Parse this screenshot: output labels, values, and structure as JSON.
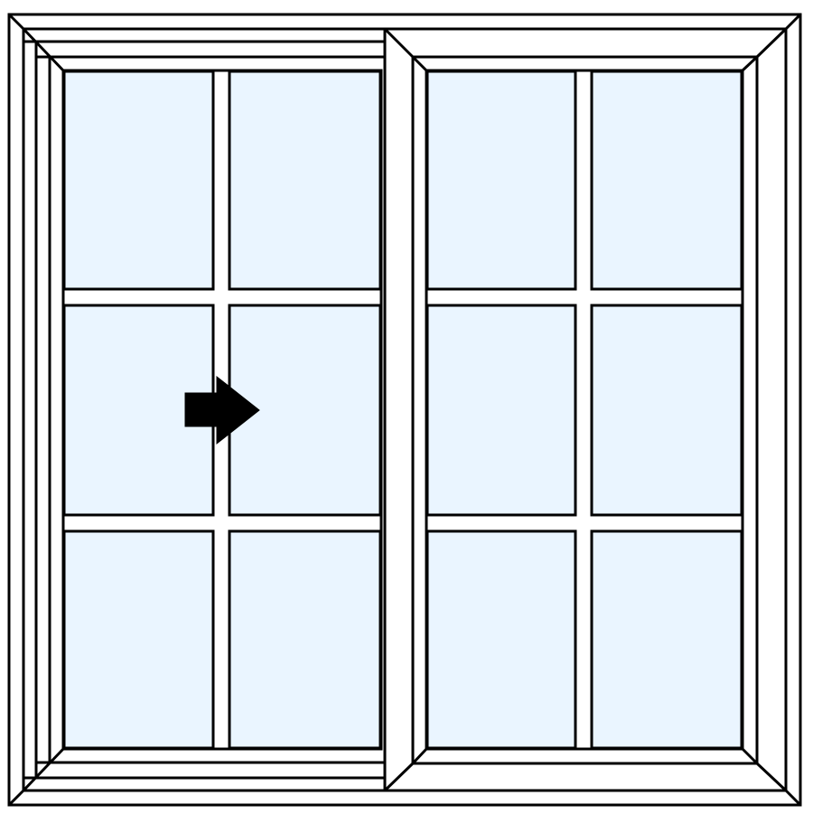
{
  "diagram": {
    "type": "sliding-window",
    "panels": [
      {
        "name": "left-sash",
        "operable": true,
        "grid": {
          "rows": 3,
          "cols": 2
        }
      },
      {
        "name": "right-sash",
        "operable": false,
        "grid": {
          "rows": 3,
          "cols": 2
        }
      }
    ],
    "slide_direction": "right",
    "colors": {
      "glass": "#EAF5FF",
      "frame": "#FFFFFF",
      "outline": "#000000",
      "arrow": "#000000"
    },
    "icons": [
      "slide-right-arrow-icon"
    ]
  }
}
